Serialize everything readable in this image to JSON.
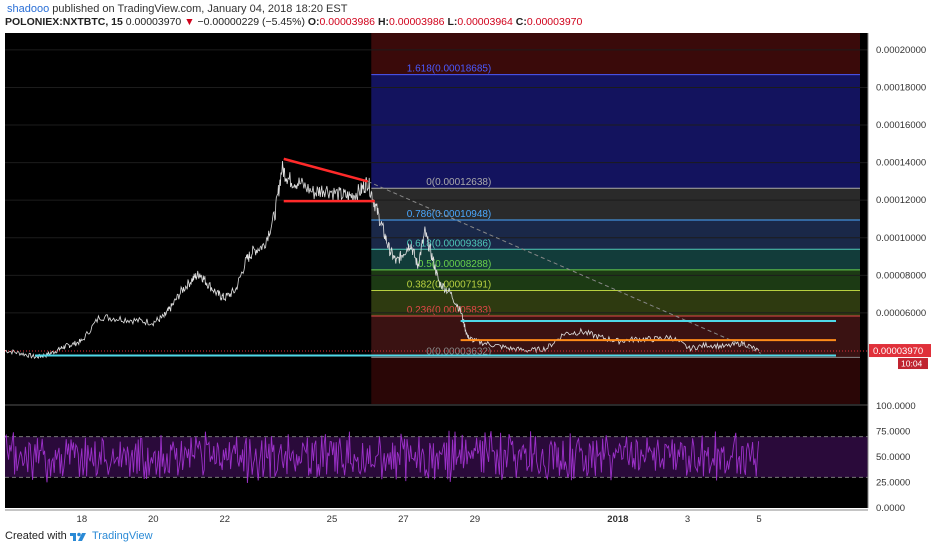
{
  "header": {
    "author": "shadooo",
    "published": "published on TradingView.com, January 04, 2018 18:20 EST",
    "symbol": "POLONIEX:NXTBTC, 15",
    "last": "0.00003970",
    "change": "−0.00000229 (−5.45%)",
    "open_label": "O:",
    "open": "0.00003986",
    "high_label": "H:",
    "high": "0.00003986",
    "low_label": "L:",
    "low": "0.00003964",
    "close_label": "C:",
    "close": "0.00003970"
  },
  "footer": {
    "created_with": "Created with",
    "brand": "TradingView"
  },
  "colors": {
    "background": "#000000",
    "price_line": "#e0e0e0",
    "resistance": "#ff2a2a",
    "support_cyan": "#4fd8e8",
    "support_orange": "#ff8c1a",
    "rsi": "#9b30c8",
    "rsi_band": "#2a0a3a",
    "axis_text": "#333333",
    "last_price_tag": "#e0303a"
  },
  "chart_data": {
    "type": "line",
    "title": "",
    "price_axis": {
      "ylim": [
        1.15e-05,
        0.000209
      ],
      "ticks": [
        "0.00020000",
        "0.00018000",
        "0.00016000",
        "0.00014000",
        "0.00012000",
        "0.00010000",
        "0.00008000",
        "0.00006000"
      ],
      "tick_values": [
        0.0002,
        0.00018,
        0.00016,
        0.00014,
        0.00012,
        0.0001,
        8e-05,
        6e-05
      ]
    },
    "last_price_label": "0.00003970",
    "countdown_label": "10:04",
    "x_axis": {
      "ticks": [
        "18",
        "20",
        "22",
        "25",
        "27",
        "29",
        "2018",
        "3",
        "5"
      ],
      "tick_days": [
        18,
        20,
        22,
        25,
        27,
        29,
        33,
        34.95,
        36.95
      ]
    },
    "price_series": {
      "name": "NXTBTC",
      "x": [
        15.85,
        16.3,
        16.7,
        17.0,
        17.3,
        17.5,
        17.7,
        18.0,
        18.5,
        19.0,
        19.5,
        20.0,
        20.3,
        20.5,
        20.8,
        21.1,
        21.3,
        21.5,
        21.8,
        22.0,
        22.3,
        22.6,
        22.8,
        23.1,
        23.4,
        23.6,
        23.8,
        24.1,
        24.5,
        24.8,
        25.2,
        25.5,
        25.8,
        26.0,
        26.2,
        26.4,
        26.6,
        26.8,
        27.0,
        27.2,
        27.4,
        27.6,
        27.8,
        28.0,
        28.3,
        28.6,
        28.8,
        29.0,
        29.5,
        30.0,
        30.5,
        31.0,
        31.5,
        32.0,
        32.5,
        33.0,
        33.5,
        34.0,
        34.5,
        35.0,
        35.5,
        36.0,
        36.5,
        36.95
      ],
      "y": [
        4e-05,
        3.85e-05,
        3.65e-05,
        3.75e-05,
        4e-05,
        4.2e-05,
        4.3e-05,
        4.5e-05,
        5.8e-05,
        5.7e-05,
        5.6e-05,
        5.5e-05,
        5.8e-05,
        6.3e-05,
        7.2e-05,
        7.8e-05,
        8.1e-05,
        7.6e-05,
        7e-05,
        6.8e-05,
        7.2e-05,
        8.8e-05,
        9.3e-05,
        9.6e-05,
        0.000112,
        0.000137,
        0.000131,
        0.000129,
        0.000124,
        0.000126,
        0.000123,
        0.000122,
        0.000125,
        0.00013,
        0.000118,
        0.000106,
        9.4e-05,
        8.7e-05,
        9.2e-05,
        9.7e-05,
        8.5e-05,
        0.000103,
        9e-05,
        7.6e-05,
        7.1e-05,
        6.1e-05,
        4.7e-05,
        4.5e-05,
        4.3e-05,
        4.1e-05,
        4e-05,
        4.1e-05,
        4.9e-05,
        5e-05,
        4.7e-05,
        4.5e-05,
        4.6e-05,
        4.6e-05,
        4.7e-05,
        4.1e-05,
        4.3e-05,
        4.2e-05,
        4.4e-05,
        3.97e-05
      ]
    },
    "fibonacci": [
      {
        "label": "1.618(0.00018685)",
        "value": 0.00018685,
        "color": "#4a5aff"
      },
      {
        "label": "0(0.00012638)",
        "value": 0.00012638,
        "color": "#aaaaaa"
      },
      {
        "label": "0.786(0.00010948)",
        "value": 0.00010948,
        "color": "#4aa8ff"
      },
      {
        "label": "0.618(0.00009386)",
        "value": 9.386e-05,
        "color": "#4fc8b8"
      },
      {
        "label": "0.5(0.00008288)",
        "value": 8.288e-05,
        "color": "#6ad04a"
      },
      {
        "label": "0.382(0.00007191)",
        "value": 7.191e-05,
        "color": "#b8d040"
      },
      {
        "label": "0.236(0.00005833)",
        "value": 5.833e-05,
        "color": "#e04848"
      },
      {
        "label": "0(0.00003632)",
        "value": 3.632e-05,
        "color": "#888888"
      }
    ],
    "rsi": {
      "ylim": [
        0,
        100
      ],
      "ticks": [
        "100.0000",
        "75.0000",
        "50.0000",
        "25.0000",
        "0.0000"
      ],
      "tick_values": [
        100,
        75,
        50,
        25,
        0
      ],
      "bands": [
        70,
        30
      ]
    }
  }
}
